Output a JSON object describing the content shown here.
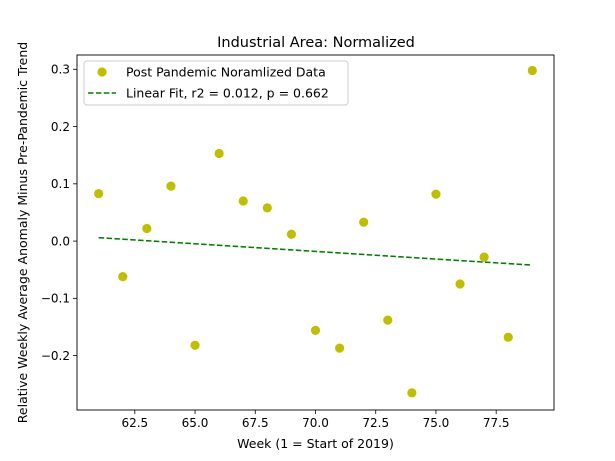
{
  "chart_data": {
    "type": "scatter",
    "title": "Industrial Area: Normalized",
    "xlabel": "Week (1 = Start of 2019)",
    "ylabel": "Relative Weekly Average Anomaly Minus Pre-Pandemic Trend",
    "xlim": [
      60.1,
      79.9
    ],
    "ylim": [
      -0.295,
      0.325
    ],
    "xticks": [
      62.5,
      65.0,
      67.5,
      70.0,
      72.5,
      75.0,
      77.5
    ],
    "xtick_labels": [
      "62.5",
      "65.0",
      "67.5",
      "70.0",
      "72.5",
      "75.0",
      "77.5"
    ],
    "yticks": [
      -0.2,
      -0.1,
      0.0,
      0.1,
      0.2,
      0.3
    ],
    "ytick_labels": [
      "−0.2",
      "−0.1",
      "0.0",
      "0.1",
      "0.2",
      "0.3"
    ],
    "grid": false,
    "legend_position": "upper-left",
    "series": [
      {
        "name": "Post Pandemic Noramlized Data",
        "kind": "scatter",
        "color": "#bfbf00",
        "x": [
          61,
          62,
          63,
          64,
          65,
          66,
          67,
          68,
          69,
          70,
          71,
          72,
          73,
          74,
          75,
          76,
          77,
          78,
          79
        ],
        "y": [
          0.083,
          -0.062,
          0.022,
          0.096,
          -0.182,
          0.153,
          0.07,
          0.058,
          0.012,
          -0.156,
          -0.187,
          0.033,
          -0.138,
          -0.265,
          0.082,
          -0.075,
          -0.028,
          -0.168,
          0.298
        ]
      },
      {
        "name": "Linear Fit, r2 = 0.012, p = 0.662",
        "kind": "line",
        "style": "dashed",
        "color": "#008000",
        "x": [
          61,
          79
        ],
        "y": [
          0.006,
          -0.042
        ]
      }
    ]
  }
}
